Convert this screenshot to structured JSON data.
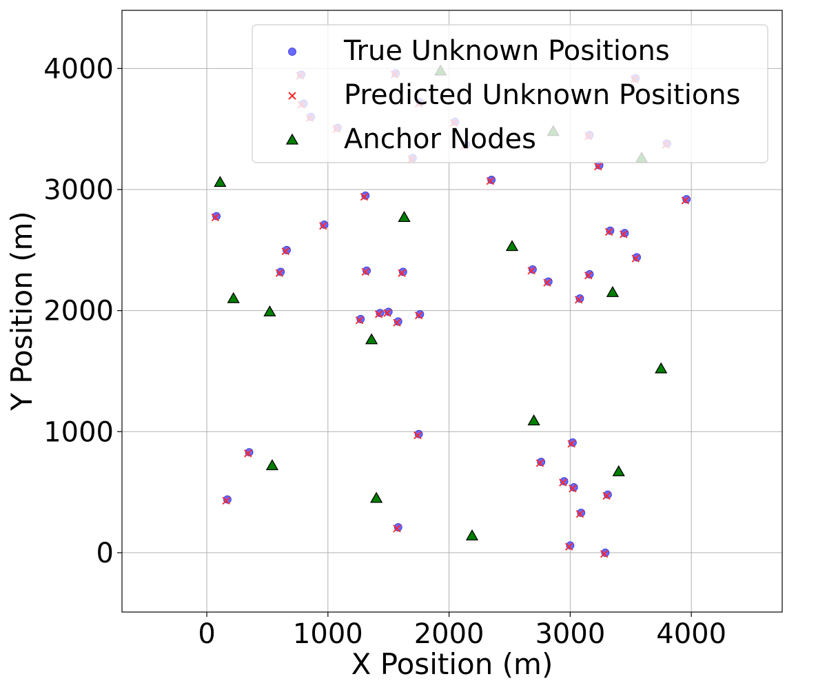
{
  "chart_data": {
    "type": "scatter",
    "title": "",
    "xlabel": "X Position (m)",
    "ylabel": "Y Position (m)",
    "xlim": [
      -700,
      4750
    ],
    "ylim": [
      -490,
      4480
    ],
    "x_ticks": [
      0,
      1000,
      2000,
      3000,
      4000
    ],
    "y_ticks": [
      0,
      1000,
      2000,
      3000,
      4000
    ],
    "x_tick_labels": [
      "0",
      "1000",
      "2000",
      "3000",
      "4000"
    ],
    "y_tick_labels": [
      "0",
      "1000",
      "2000",
      "3000",
      "4000"
    ],
    "grid": true,
    "legend_position": "top-right",
    "series": [
      {
        "name": "True Unknown Positions",
        "marker": "circle",
        "color": "#5a5aff",
        "points": [
          [
            80,
            2780
          ],
          [
            660,
            2500
          ],
          [
            610,
            2320
          ],
          [
            970,
            2710
          ],
          [
            1310,
            2950
          ],
          [
            1320,
            2330
          ],
          [
            1270,
            1930
          ],
          [
            1430,
            1980
          ],
          [
            1500,
            1990
          ],
          [
            1580,
            1910
          ],
          [
            1620,
            2320
          ],
          [
            1760,
            1970
          ],
          [
            2350,
            3080
          ],
          [
            2690,
            2340
          ],
          [
            2820,
            2240
          ],
          [
            3080,
            2100
          ],
          [
            3160,
            2300
          ],
          [
            3330,
            2660
          ],
          [
            3450,
            2640
          ],
          [
            3550,
            2440
          ],
          [
            3960,
            2920
          ],
          [
            3240,
            3200
          ],
          [
            3800,
            3380
          ],
          [
            3540,
            3920
          ],
          [
            3160,
            3450
          ],
          [
            2050,
            3560
          ],
          [
            2140,
            3370
          ],
          [
            1700,
            3260
          ],
          [
            1080,
            3510
          ],
          [
            860,
            3600
          ],
          [
            800,
            3710
          ],
          [
            780,
            3950
          ],
          [
            1560,
            3960
          ],
          [
            1760,
            3720
          ],
          [
            350,
            830
          ],
          [
            170,
            440
          ],
          [
            1750,
            980
          ],
          [
            1580,
            210
          ],
          [
            3020,
            910
          ],
          [
            2760,
            750
          ],
          [
            2950,
            590
          ],
          [
            3030,
            540
          ],
          [
            3090,
            330
          ],
          [
            3310,
            480
          ],
          [
            3000,
            60
          ],
          [
            3290,
            0
          ]
        ]
      },
      {
        "name": "Predicted Unknown Positions",
        "marker": "x",
        "color": "#ff2a2a",
        "points": [
          [
            70,
            2770
          ],
          [
            650,
            2490
          ],
          [
            600,
            2310
          ],
          [
            960,
            2700
          ],
          [
            1300,
            2940
          ],
          [
            1310,
            2320
          ],
          [
            1260,
            1920
          ],
          [
            1420,
            1970
          ],
          [
            1490,
            1980
          ],
          [
            1570,
            1900
          ],
          [
            1610,
            2310
          ],
          [
            1750,
            1960
          ],
          [
            2340,
            3070
          ],
          [
            2680,
            2330
          ],
          [
            2810,
            2230
          ],
          [
            3070,
            2090
          ],
          [
            3150,
            2290
          ],
          [
            3320,
            2650
          ],
          [
            3440,
            2630
          ],
          [
            3540,
            2430
          ],
          [
            3950,
            2910
          ],
          [
            3230,
            3190
          ],
          [
            3790,
            3370
          ],
          [
            3530,
            3910
          ],
          [
            3150,
            3440
          ],
          [
            2040,
            3550
          ],
          [
            2130,
            3360
          ],
          [
            1690,
            3250
          ],
          [
            1070,
            3500
          ],
          [
            850,
            3590
          ],
          [
            780,
            3700
          ],
          [
            770,
            3940
          ],
          [
            1550,
            3950
          ],
          [
            1750,
            3710
          ],
          [
            340,
            820
          ],
          [
            160,
            430
          ],
          [
            1740,
            970
          ],
          [
            1570,
            200
          ],
          [
            3010,
            900
          ],
          [
            2750,
            740
          ],
          [
            2940,
            580
          ],
          [
            3020,
            530
          ],
          [
            3080,
            320
          ],
          [
            3300,
            470
          ],
          [
            2990,
            50
          ],
          [
            3280,
            -10
          ]
        ]
      },
      {
        "name": "Anchor Nodes",
        "marker": "triangle",
        "color": "#008000",
        "points": [
          [
            110,
            3060
          ],
          [
            220,
            2100
          ],
          [
            520,
            1990
          ],
          [
            540,
            720
          ],
          [
            1360,
            1760
          ],
          [
            1400,
            450
          ],
          [
            1630,
            2770
          ],
          [
            2190,
            140
          ],
          [
            2520,
            2530
          ],
          [
            2700,
            1090
          ],
          [
            3350,
            2150
          ],
          [
            3400,
            670
          ],
          [
            3750,
            1520
          ],
          [
            1930,
            3980
          ],
          [
            2860,
            3480
          ],
          [
            3590,
            3260
          ]
        ]
      }
    ]
  }
}
